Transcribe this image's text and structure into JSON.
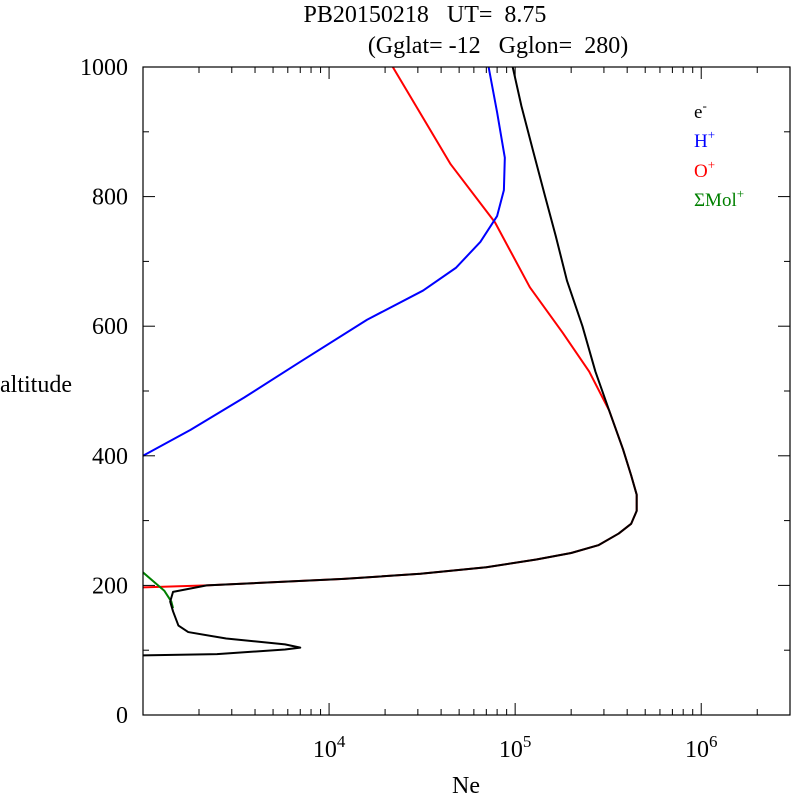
{
  "chart_data": {
    "type": "line",
    "title_line1": "PB20150218   UT=  8.75",
    "title_line2": "(Gglat= -12   Gglon=  280)",
    "xlabel": "Ne",
    "ylabel": "altitude",
    "xscale": "log",
    "xlim": [
      1000,
      3000000
    ],
    "ylim": [
      0,
      1000
    ],
    "y_ticks": [
      {
        "value": 0,
        "label": "0"
      },
      {
        "value": 200,
        "label": "200"
      },
      {
        "value": 400,
        "label": "400"
      },
      {
        "value": 600,
        "label": "600"
      },
      {
        "value": 800,
        "label": "800"
      },
      {
        "value": 1000,
        "label": "1000"
      }
    ],
    "x_ticks": [
      {
        "value": 10000,
        "base": "10",
        "exp": "4"
      },
      {
        "value": 100000,
        "base": "10",
        "exp": "5"
      },
      {
        "value": 1000000,
        "base": "10",
        "exp": "6"
      }
    ],
    "legend_position": "top-right",
    "grid": false,
    "series": [
      {
        "name": "e",
        "sup": "-",
        "color": "#000000",
        "points": [
          [
            1000,
            92
          ],
          [
            2500,
            94
          ],
          [
            5800,
            101
          ],
          [
            7000,
            104
          ],
          [
            5800,
            109
          ],
          [
            2800,
            118
          ],
          [
            1750,
            128
          ],
          [
            1550,
            138
          ],
          [
            1450,
            160
          ],
          [
            1400,
            175
          ],
          [
            1450,
            190
          ],
          [
            2200,
            200
          ],
          [
            12000,
            210
          ],
          [
            31000,
            218
          ],
          [
            70000,
            228
          ],
          [
            130000,
            240
          ],
          [
            200000,
            250
          ],
          [
            280000,
            262
          ],
          [
            360000,
            280
          ],
          [
            420000,
            295
          ],
          [
            450000,
            315
          ],
          [
            450000,
            340
          ],
          [
            420000,
            370
          ],
          [
            380000,
            410
          ],
          [
            320000,
            470
          ],
          [
            270000,
            530
          ],
          [
            230000,
            600
          ],
          [
            190000,
            670
          ],
          [
            165000,
            740
          ],
          [
            145000,
            800
          ],
          [
            125000,
            870
          ],
          [
            108000,
            940
          ],
          [
            97000,
            1000
          ]
        ]
      },
      {
        "name": "H",
        "sup": "+",
        "color": "#0000ff",
        "points": [
          [
            1000,
            400
          ],
          [
            1800,
            440
          ],
          [
            3500,
            490
          ],
          [
            7000,
            545
          ],
          [
            16000,
            610
          ],
          [
            32000,
            655
          ],
          [
            48000,
            690
          ],
          [
            65000,
            730
          ],
          [
            80000,
            770
          ],
          [
            87000,
            810
          ],
          [
            88000,
            860
          ],
          [
            80000,
            930
          ],
          [
            72000,
            1000
          ]
        ]
      },
      {
        "name": "O",
        "sup": "+",
        "color": "#ff0000",
        "points": [
          [
            1000,
            197
          ],
          [
            2200,
            200
          ],
          [
            12000,
            210
          ],
          [
            31000,
            218
          ],
          [
            70000,
            228
          ],
          [
            130000,
            240
          ],
          [
            200000,
            250
          ],
          [
            280000,
            262
          ],
          [
            360000,
            280
          ],
          [
            420000,
            295
          ],
          [
            450000,
            315
          ],
          [
            450000,
            340
          ],
          [
            420000,
            370
          ],
          [
            380000,
            410
          ],
          [
            320000,
            470
          ],
          [
            250000,
            530
          ],
          [
            180000,
            590
          ],
          [
            120000,
            660
          ],
          [
            78000,
            760
          ],
          [
            45000,
            850
          ],
          [
            22000,
            1000
          ]
        ]
      },
      {
        "name": "ΣMol",
        "sup": "+",
        "color": "#008000",
        "points": [
          [
            1000,
            220
          ],
          [
            1150,
            205
          ],
          [
            1300,
            192
          ],
          [
            1420,
            175
          ],
          [
            1450,
            165
          ]
        ]
      }
    ]
  }
}
